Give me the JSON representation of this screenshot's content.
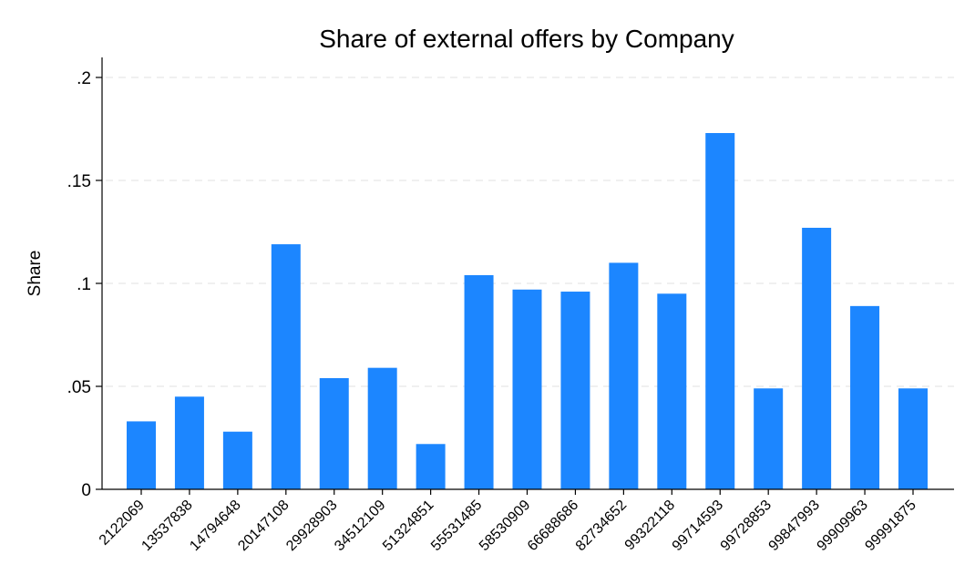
{
  "chart_data": {
    "type": "bar",
    "title": "Share of external offers by Company",
    "xlabel": "",
    "ylabel": "Share",
    "ylim": [
      0,
      0.2
    ],
    "yticks": [
      {
        "value": 0,
        "label": "0"
      },
      {
        "value": 0.05,
        "label": ".05"
      },
      {
        "value": 0.1,
        "label": ".1"
      },
      {
        "value": 0.15,
        "label": ".15"
      },
      {
        "value": 0.2,
        "label": ".2"
      }
    ],
    "grid": true,
    "categories": [
      "2122069",
      "13537838",
      "14794648",
      "20147108",
      "29928903",
      "34512109",
      "51324851",
      "55531485",
      "58530909",
      "66688686",
      "82734652",
      "99322118",
      "99714593",
      "99728853",
      "99847993",
      "99909963",
      "99991875"
    ],
    "values": [
      0.033,
      0.045,
      0.028,
      0.119,
      0.054,
      0.059,
      0.022,
      0.104,
      0.097,
      0.096,
      0.11,
      0.095,
      0.173,
      0.049,
      0.127,
      0.089,
      0.049
    ],
    "bar_color": "#1c86ff"
  }
}
